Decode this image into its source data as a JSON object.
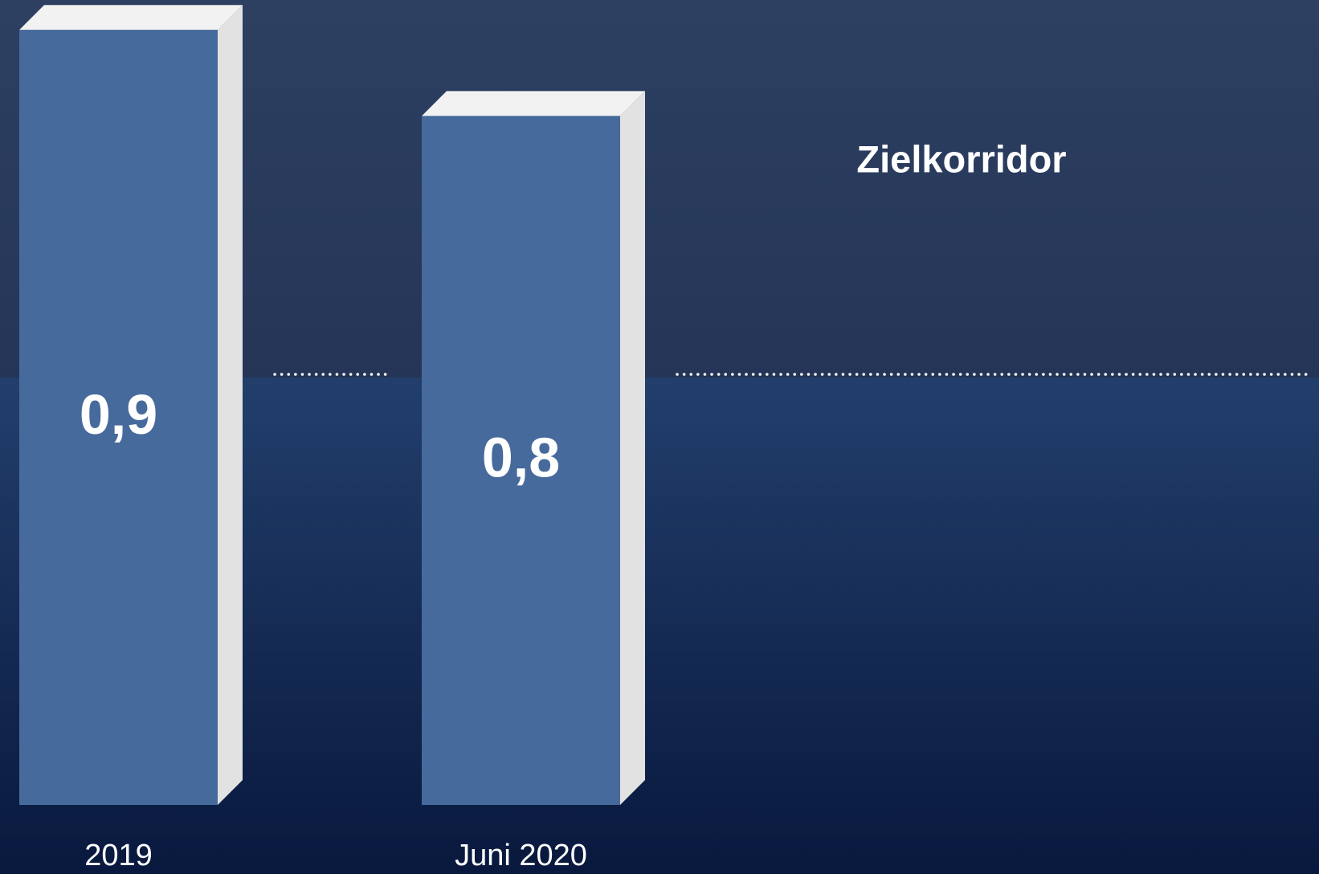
{
  "chart_data": {
    "type": "bar3d",
    "categories": [
      "2019",
      "Juni 2020"
    ],
    "values": [
      0.9,
      0.8
    ],
    "value_labels": [
      "0,9",
      "0,8"
    ],
    "color": "#476a9c",
    "ylim": [
      0,
      1
    ],
    "reference_line": {
      "value": 0.5,
      "label": "Zielkorridor"
    }
  }
}
